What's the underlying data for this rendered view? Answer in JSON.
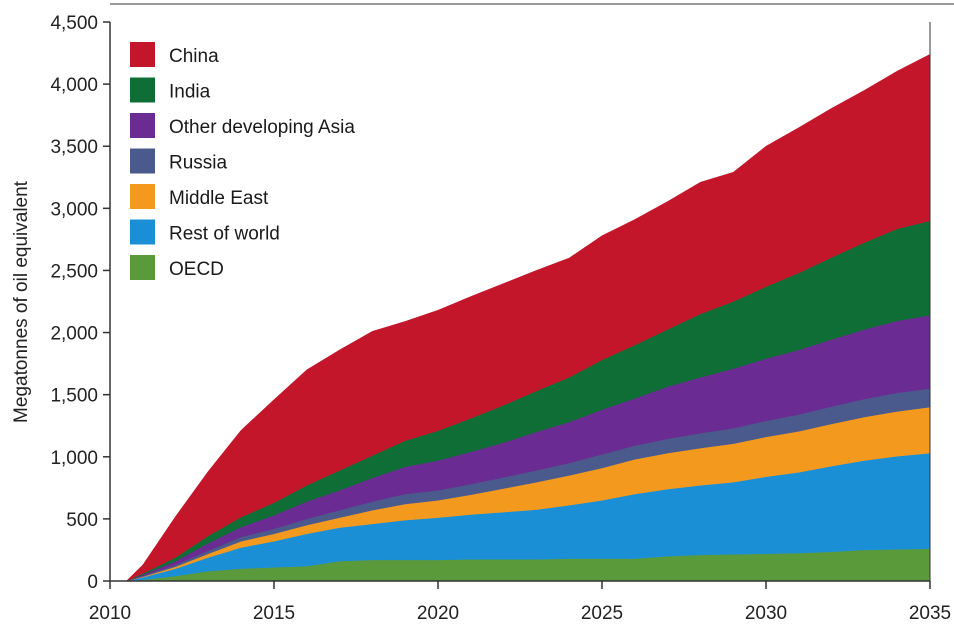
{
  "chart_data": {
    "type": "area",
    "stacked": true,
    "title": "",
    "xlabel": "",
    "ylabel": "Megatonnes of oil equivalent",
    "xlim": [
      2010,
      2035
    ],
    "ylim": [
      0,
      4500
    ],
    "x_ticks": [
      "2010",
      "2015",
      "2020",
      "2025",
      "2030",
      "2035"
    ],
    "y_ticks": [
      "0",
      "500",
      "1,000",
      "1,500",
      "2,000",
      "2,500",
      "3,000",
      "3,500",
      "4,000",
      "4,500"
    ],
    "legend_position": "top-left",
    "grid": false,
    "x": [
      2010.5,
      2011,
      2012,
      2013,
      2014,
      2015,
      2016,
      2017,
      2018,
      2019,
      2020,
      2021,
      2022,
      2023,
      2024,
      2025,
      2026,
      2027,
      2028,
      2029,
      2030,
      2031,
      2032,
      2033,
      2034,
      2035
    ],
    "series": [
      {
        "name": "OECD",
        "color": "#5a9a3a",
        "values": [
          0,
          10,
          40,
          80,
          100,
          110,
          120,
          160,
          170,
          170,
          170,
          175,
          175,
          175,
          180,
          180,
          180,
          200,
          210,
          215,
          220,
          225,
          235,
          250,
          255,
          260
        ]
      },
      {
        "name": "Rest of world",
        "color": "#1b8fd6",
        "values": [
          0,
          20,
          60,
          110,
          170,
          210,
          260,
          270,
          290,
          320,
          340,
          360,
          380,
          400,
          430,
          470,
          520,
          540,
          560,
          580,
          620,
          650,
          690,
          720,
          750,
          770
        ]
      },
      {
        "name": "Middle East",
        "color": "#f39a1e",
        "values": [
          0,
          5,
          15,
          30,
          50,
          60,
          70,
          80,
          110,
          130,
          140,
          160,
          190,
          220,
          240,
          260,
          280,
          290,
          300,
          310,
          320,
          330,
          340,
          350,
          360,
          370
        ]
      },
      {
        "name": "Russia",
        "color": "#4a5a8c",
        "values": [
          0,
          5,
          15,
          25,
          35,
          40,
          50,
          60,
          70,
          80,
          80,
          85,
          90,
          95,
          100,
          110,
          110,
          115,
          120,
          125,
          130,
          135,
          140,
          145,
          150,
          150
        ]
      },
      {
        "name": "Other developing Asia",
        "color": "#6a2b92",
        "values": [
          0,
          10,
          30,
          60,
          80,
          110,
          140,
          160,
          190,
          220,
          240,
          260,
          280,
          310,
          330,
          360,
          380,
          420,
          450,
          480,
          500,
          520,
          540,
          560,
          580,
          590
        ]
      },
      {
        "name": "India",
        "color": "#0f6e35",
        "values": [
          0,
          10,
          30,
          60,
          80,
          100,
          130,
          160,
          180,
          210,
          240,
          270,
          300,
          330,
          360,
          400,
          430,
          460,
          510,
          540,
          580,
          620,
          660,
          700,
          740,
          760
        ]
      },
      {
        "name": "China",
        "color": "#c4162a",
        "values": [
          0,
          70,
          330,
          520,
          700,
          830,
          930,
          970,
          1000,
          960,
          970,
          980,
          980,
          970,
          960,
          1000,
          1010,
          1030,
          1060,
          1040,
          1130,
          1170,
          1200,
          1225,
          1270,
          1340
        ]
      }
    ],
    "legend_order": [
      "China",
      "India",
      "Other developing Asia",
      "Russia",
      "Middle East",
      "Rest of world",
      "OECD"
    ]
  }
}
